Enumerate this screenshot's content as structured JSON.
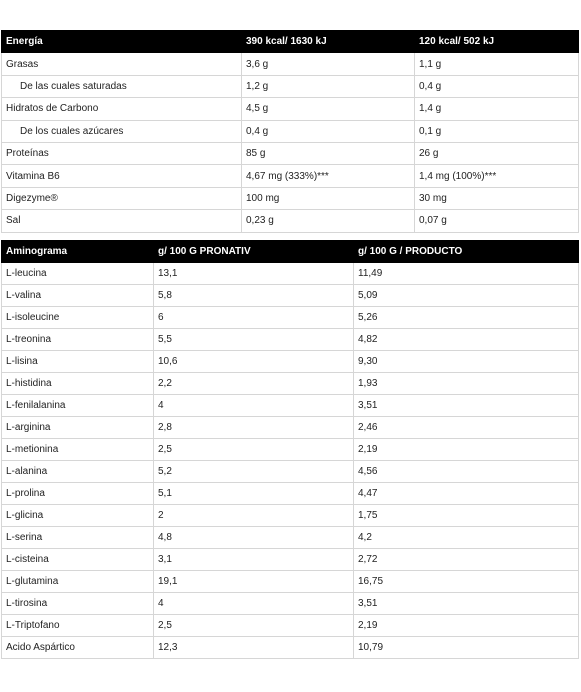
{
  "nutrition": {
    "header": [
      "Energía",
      "390 kcal/ 1630 kJ",
      "120 kcal/ 502 kJ"
    ],
    "rows": [
      {
        "name": "Grasas",
        "v1": "3,6 g",
        "v2": "1,1 g"
      },
      {
        "name": "De las cuales saturadas",
        "v1": "1,2 g",
        "v2": "0,4 g"
      },
      {
        "name": "Hidratos de Carbono",
        "v1": "4,5 g",
        "v2": "1,4 g"
      },
      {
        "name": "De los cuales azúcares",
        "v1": "0,4 g",
        "v2": "0,1 g"
      },
      {
        "name": "Proteínas",
        "v1": "85 g",
        "v2": "26 g"
      },
      {
        "name": "Vitamina B6",
        "v1": "4,67 mg (333%)***",
        "v2": "1,4 mg (100%)***"
      },
      {
        "name": "Digezyme®",
        "v1": "100 mg",
        "v2": "30 mg"
      },
      {
        "name": "Sal",
        "v1": "0,23 g",
        "v2": "0,07 g"
      }
    ]
  },
  "aminogram": {
    "header": [
      "Aminograma",
      "g/ 100 G PRONATIV",
      "g/ 100 G / PRODUCTO"
    ],
    "rows": [
      {
        "name": "L-leucina",
        "v1": "13,1",
        "v2": "11,49"
      },
      {
        "name": "L-valina",
        "v1": "5,8",
        "v2": "5,09"
      },
      {
        "name": "L-isoleucine",
        "v1": "6",
        "v2": "5,26"
      },
      {
        "name": "L-treonina",
        "v1": "5,5",
        "v2": "4,82"
      },
      {
        "name": "L-lisina",
        "v1": "10,6",
        "v2": "9,30"
      },
      {
        "name": "L-histidina",
        "v1": "2,2",
        "v2": "1,93"
      },
      {
        "name": "L-fenilalanina",
        "v1": "4",
        "v2": "3,51"
      },
      {
        "name": "L-arginina",
        "v1": "2,8",
        "v2": "2,46"
      },
      {
        "name": "L-metionina",
        "v1": "2,5",
        "v2": "2,19"
      },
      {
        "name": "L-alanina",
        "v1": "5,2",
        "v2": "4,56"
      },
      {
        "name": "L-prolina",
        "v1": "5,1",
        "v2": "4,47"
      },
      {
        "name": "L-glicina",
        "v1": "2",
        "v2": "1,75"
      },
      {
        "name": "L-serina",
        "v1": "4,8",
        "v2": "4,2"
      },
      {
        "name": "L-cisteina",
        "v1": "3,1",
        "v2": "2,72"
      },
      {
        "name": "L-glutamina",
        "v1": "19,1",
        "v2": "16,75"
      },
      {
        "name": "L-tirosina",
        "v1": "4",
        "v2": "3,51"
      },
      {
        "name": "L-Triptofano",
        "v1": "2,5",
        "v2": "2,19"
      },
      {
        "name": "Acido Aspártico",
        "v1": "12,3",
        "v2": "10,79"
      }
    ]
  }
}
